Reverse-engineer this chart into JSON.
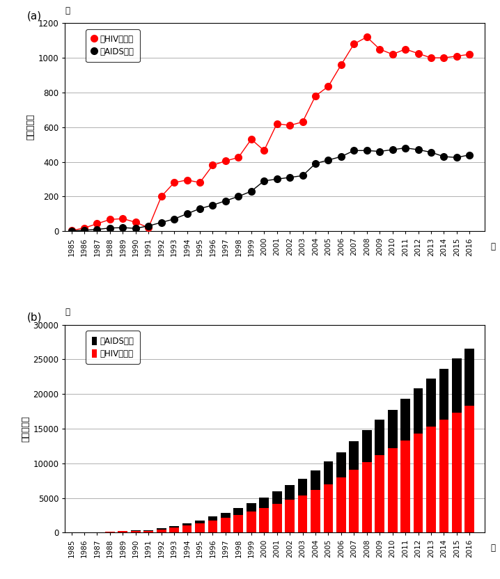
{
  "years": [
    1985,
    1986,
    1987,
    1988,
    1989,
    1990,
    1991,
    1992,
    1993,
    1994,
    1995,
    1996,
    1997,
    1998,
    1999,
    2000,
    2001,
    2002,
    2003,
    2004,
    2005,
    2006,
    2007,
    2008,
    2009,
    2010,
    2011,
    2012,
    2013,
    2014,
    2015,
    2016
  ],
  "hiv_annual": [
    3,
    18,
    43,
    67,
    72,
    51,
    20,
    200,
    280,
    295,
    280,
    380,
    405,
    425,
    530,
    465,
    620,
    610,
    630,
    780,
    835,
    960,
    1080,
    1120,
    1050,
    1020,
    1050,
    1025,
    1000,
    1000,
    1010,
    1020
  ],
  "aids_annual": [
    1,
    5,
    10,
    18,
    20,
    16,
    30,
    50,
    70,
    100,
    130,
    150,
    175,
    200,
    230,
    290,
    300,
    310,
    320,
    390,
    410,
    430,
    465,
    465,
    460,
    470,
    480,
    470,
    455,
    430,
    425,
    440
  ],
  "hiv_cumulative": [
    3,
    21,
    64,
    131,
    203,
    254,
    274,
    474,
    754,
    1049,
    1329,
    1709,
    2114,
    2539,
    3069,
    3534,
    4154,
    4764,
    5394,
    6174,
    7009,
    7969,
    9049,
    10169,
    11219,
    12239,
    13289,
    14314,
    15314,
    16314,
    17324,
    18344
  ],
  "aids_cumulative": [
    1,
    6,
    16,
    34,
    54,
    70,
    100,
    150,
    220,
    320,
    450,
    600,
    775,
    975,
    1205,
    1495,
    1795,
    2105,
    2425,
    2815,
    3225,
    3655,
    4120,
    4585,
    5045,
    5515,
    5995,
    6465,
    6920,
    7350,
    7775,
    8215
  ],
  "panel_a_ylim": [
    0,
    1200
  ],
  "panel_a_yticks": [
    0,
    200,
    400,
    600,
    800,
    1000,
    1200
  ],
  "panel_b_ylim": [
    0,
    30000
  ],
  "panel_b_yticks": [
    0,
    5000,
    10000,
    15000,
    20000,
    25000,
    30000
  ],
  "hiv_color": "#ff0000",
  "aids_color": "#000000",
  "bar_aids_color": "#000000",
  "bar_hiv_color": "#ff0000",
  "ylabel_a": "年次報告数",
  "ylabel_b": "累計報告数",
  "unit_label": "人",
  "year_label": "年",
  "legend_hiv_a": "：HIV感染者",
  "legend_aids_a": "：AIDS患者",
  "legend_aids_b": "：AIDS患者",
  "legend_hiv_b": "：HIV感染者",
  "panel_a_label": "(a)",
  "panel_b_label": "(b)",
  "bg_color": "#ffffff",
  "grid_color": "#b0b0b0"
}
